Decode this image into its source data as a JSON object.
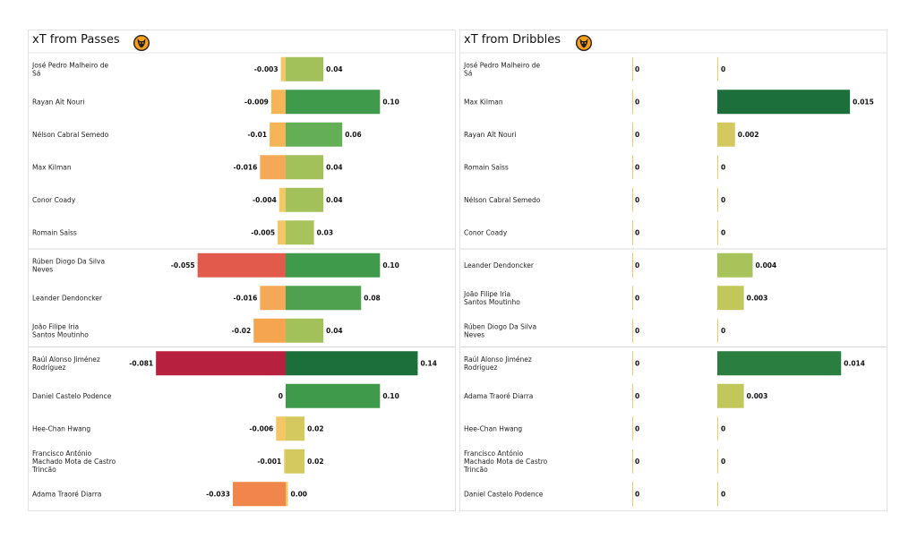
{
  "chart_data": [
    {
      "type": "bar",
      "title": "xT from Passes",
      "crest": "wolves-crest-icon",
      "value_range": [
        -0.085,
        0.15
      ],
      "group_breaks_after": [
        5,
        8
      ],
      "players": [
        "José Pedro Malheiro de Sá",
        "Rayan Aït Nouri",
        "Nélson Cabral Semedo",
        "Max Kilman",
        "Conor  Coady",
        "Romain Saïss",
        "Rúben Diogo Da Silva Neves",
        "Leander Dendoncker",
        "João Filipe Iria Santos Moutinho",
        "Raúl Alonso Jiménez Rodríguez",
        "Daniel Castelo Podence",
        "Hee-Chan Hwang",
        "Francisco António Machado Mota de Castro Trincão",
        "Adama Traoré Diarra"
      ],
      "negative_values": [
        -0.003,
        -0.009,
        -0.01,
        -0.016,
        -0.004,
        -0.005,
        -0.055,
        -0.016,
        -0.02,
        -0.081,
        0,
        -0.006,
        -0.001,
        -0.033
      ],
      "negative_labels": [
        "-0.003",
        "-0.009",
        "-0.01",
        "-0.016",
        "-0.004",
        "-0.005",
        "-0.055",
        "-0.016",
        "-0.02",
        "-0.081",
        "0",
        "-0.006",
        "-0.001",
        "-0.033"
      ],
      "positive_values": [
        0.04,
        0.1,
        0.06,
        0.04,
        0.04,
        0.03,
        0.1,
        0.08,
        0.04,
        0.14,
        0.1,
        0.02,
        0.02,
        0.0
      ],
      "positive_labels": [
        "0.04",
        "0.10",
        "0.06",
        "0.04",
        "0.04",
        "0.03",
        "0.10",
        "0.08",
        "0.04",
        "0.14",
        "0.10",
        "0.02",
        "0.02",
        "0.00"
      ],
      "negative_colors": [
        "#f3c766",
        "#f5b456",
        "#f5b456",
        "#f5a857",
        "#f3c766",
        "#f3c766",
        "#e15a4b",
        "#f5a857",
        "#f5a550",
        "#b8203f",
        "#f3c766",
        "#f3c766",
        "#f3c766",
        "#f0864b"
      ],
      "positive_colors": [
        "#a2c15a",
        "#3f9b4b",
        "#64ae55",
        "#a2c15a",
        "#a2c15a",
        "#a8c35a",
        "#3f9b4b",
        "#4fa150",
        "#a2c15a",
        "#1c6f3a",
        "#3f9b4b",
        "#d3c95e",
        "#d3c95e",
        "#f3c766"
      ]
    },
    {
      "type": "bar",
      "title": "xT from Dribbles",
      "crest": "wolves-crest-icon",
      "value_range": [
        0,
        0.016
      ],
      "group_breaks_after": [
        5,
        8
      ],
      "players": [
        "José Pedro Malheiro de Sá",
        "Max Kilman",
        "Rayan Aït Nouri",
        "Romain Saïss",
        "Nélson Cabral Semedo",
        "Conor  Coady",
        "Leander Dendoncker",
        "João Filipe Iria Santos Moutinho",
        "Rúben Diogo Da Silva Neves",
        "Raúl Alonso Jiménez Rodríguez",
        "Adama Traoré Diarra",
        "Hee-Chan Hwang",
        "Francisco António Machado Mota de Castro Trincão",
        "Daniel Castelo Podence"
      ],
      "negative_values": [
        0,
        0,
        0,
        0,
        0,
        0,
        0,
        0,
        0,
        0,
        0,
        0,
        0,
        0
      ],
      "negative_labels": [
        "0",
        "0",
        "0",
        "0",
        "0",
        "0",
        "0",
        "0",
        "0",
        "0",
        "0",
        "0",
        "0",
        "0"
      ],
      "positive_values": [
        0,
        0.015,
        0.002,
        0,
        0,
        0,
        0.004,
        0.003,
        0,
        0.014,
        0.003,
        0,
        0,
        0
      ],
      "positive_labels": [
        "0",
        "0.015",
        "0.002",
        "0",
        "0",
        "0",
        "0.004",
        "0.003",
        "0",
        "0.014",
        "0.003",
        "0",
        "0",
        "0"
      ],
      "negative_colors": [
        "#f3c766",
        "#f3c766",
        "#f3c766",
        "#f3c766",
        "#f3c766",
        "#f3c766",
        "#f3c766",
        "#f3c766",
        "#f3c766",
        "#f3c766",
        "#f3c766",
        "#f3c766",
        "#f3c766",
        "#f3c766"
      ],
      "positive_colors": [
        "#f3c766",
        "#1c6f3a",
        "#d3c95e",
        "#f3c766",
        "#f3c766",
        "#f3c766",
        "#a8c35a",
        "#c2c75c",
        "#f3c766",
        "#2a7e40",
        "#c2c75c",
        "#f3c766",
        "#f3c766",
        "#f3c766"
      ]
    }
  ]
}
